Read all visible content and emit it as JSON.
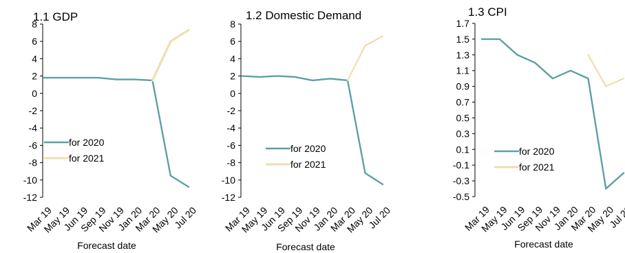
{
  "colors": {
    "for_2020": "#5e9fa3",
    "for_2021": "#f0deb0",
    "axis": "#000000"
  },
  "chart_data": [
    {
      "type": "line",
      "title": "1.1 GDP",
      "xlabel": "Forecast date",
      "ylabel": "",
      "categories": [
        "Mar 19",
        "May 19",
        "Jun 19",
        "Sep 19",
        "Nov 19",
        "Jan 20",
        "Mar 20",
        "May 20",
        "Jul 20"
      ],
      "yticks": [
        "8",
        "6",
        "4",
        "2",
        "0",
        "-2",
        "-4",
        "-6",
        "-8",
        "-10",
        "-12"
      ],
      "ylim": [
        -12,
        8
      ],
      "grid": false,
      "legend": "center-left",
      "series": [
        {
          "name": "for 2020",
          "values": [
            1.8,
            1.8,
            1.8,
            1.8,
            1.6,
            1.6,
            1.5,
            -9.5,
            -10.8
          ]
        },
        {
          "name": "for 2021",
          "values": [
            null,
            null,
            null,
            null,
            null,
            null,
            1.5,
            6.0,
            7.3
          ]
        }
      ]
    },
    {
      "type": "line",
      "title": "1.2 Domestic Demand",
      "xlabel": "Forecast date",
      "ylabel": "",
      "categories": [
        "Mar 19",
        "May 19",
        "Jun 19",
        "Sep 19",
        "Nov 19",
        "Jan 20",
        "Mar 20",
        "May 20",
        "Jul 20"
      ],
      "yticks": [
        "8",
        "6",
        "4",
        "2",
        "0",
        "-2",
        "-4",
        "-6",
        "-8",
        "-10",
        "-12"
      ],
      "ylim": [
        -12,
        8
      ],
      "grid": false,
      "legend": "bottom-center",
      "series": [
        {
          "name": "for 2020",
          "values": [
            2.0,
            1.9,
            2.0,
            1.9,
            1.5,
            1.7,
            1.5,
            -9.2,
            -10.5
          ]
        },
        {
          "name": "for 2021",
          "values": [
            null,
            null,
            null,
            null,
            null,
            null,
            1.5,
            5.5,
            6.6
          ]
        }
      ]
    },
    {
      "type": "line",
      "title": "1.3 CPI",
      "xlabel": "Forecast date",
      "ylabel": "",
      "categories": [
        "Mar 19",
        "May 19",
        "Jun 19",
        "Sep 19",
        "Nov 19",
        "Jan 20",
        "Mar 20",
        "May 20",
        "Jul 20"
      ],
      "yticks": [
        "1.7",
        "1.5",
        "1.3",
        "1.1",
        "0.9",
        "0.7",
        "0.5",
        "0.3",
        "0.1",
        "-0.1",
        "-0.3",
        "-0.5"
      ],
      "ylim": [
        -0.5,
        1.7
      ],
      "grid": false,
      "legend": "bottom-center",
      "series": [
        {
          "name": "for 2020",
          "values": [
            1.5,
            1.5,
            1.3,
            1.2,
            1.0,
            1.1,
            1.0,
            -0.4,
            -0.2
          ]
        },
        {
          "name": "for 2021",
          "values": [
            null,
            null,
            null,
            null,
            null,
            null,
            1.3,
            0.9,
            1.0
          ]
        }
      ]
    }
  ]
}
